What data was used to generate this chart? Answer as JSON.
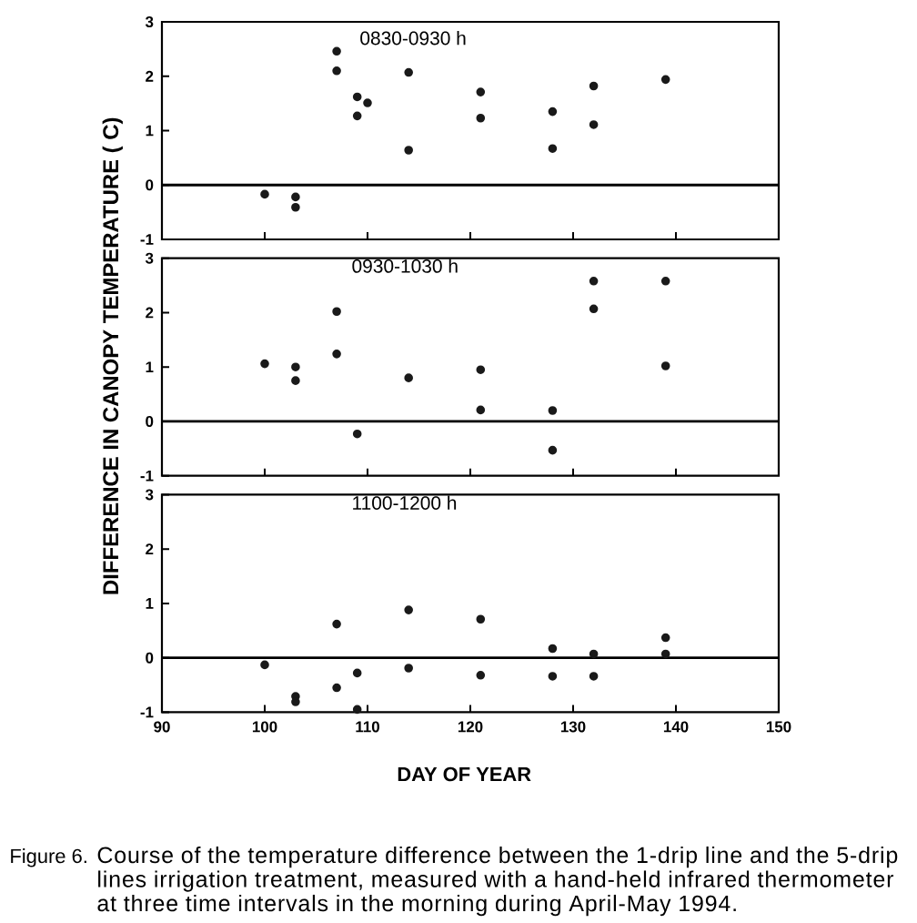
{
  "chart_data": [
    {
      "type": "scatter",
      "title": "0830-0930 h",
      "x": [
        100,
        103,
        103,
        107,
        107,
        109,
        109,
        110,
        114,
        114,
        121,
        121,
        128,
        128,
        132,
        132,
        139
      ],
      "values": [
        -0.17,
        -0.22,
        -0.41,
        2.46,
        2.1,
        1.62,
        1.27,
        1.51,
        2.07,
        0.64,
        1.71,
        1.23,
        1.35,
        0.67,
        1.82,
        1.11,
        1.94
      ],
      "color": "#1a1a1a",
      "marker": "circle",
      "xlim": [
        90,
        150
      ],
      "ylim": [
        -1,
        3
      ],
      "xticks": [
        90,
        100,
        110,
        120,
        130,
        140,
        150
      ],
      "yticks": [
        -1,
        0,
        1,
        2,
        3
      ],
      "tick_labels": "y",
      "ref_lines": [
        {
          "axis": "y",
          "value": 0
        }
      ]
    },
    {
      "type": "scatter",
      "title": "0930-1030 h",
      "ylabel": "DIFFERENCE IN CANOPY TEMPERATURE ( C)",
      "x": [
        100,
        103,
        103,
        107,
        107,
        109,
        114,
        121,
        121,
        128,
        128,
        132,
        132,
        139,
        139
      ],
      "values": [
        1.06,
        1.0,
        0.75,
        2.02,
        1.24,
        -0.23,
        0.8,
        0.95,
        0.21,
        0.2,
        -0.53,
        2.58,
        2.07,
        2.58,
        1.02
      ],
      "color": "#1a1a1a",
      "marker": "circle",
      "xlim": [
        90,
        150
      ],
      "ylim": [
        -1,
        3
      ],
      "xticks": [
        90,
        100,
        110,
        120,
        130,
        140,
        150
      ],
      "yticks": [
        -1,
        0,
        1,
        2,
        3
      ],
      "tick_labels": "y",
      "ref_lines": [
        {
          "axis": "y",
          "value": 0
        }
      ]
    },
    {
      "type": "scatter",
      "title": "1100-1200 h",
      "xlabel": "DAY OF YEAR",
      "x": [
        100,
        103,
        103,
        107,
        107,
        109,
        109,
        114,
        114,
        121,
        121,
        128,
        128,
        132,
        132,
        139,
        139
      ],
      "values": [
        -0.13,
        -0.71,
        -0.81,
        0.62,
        -0.55,
        -0.28,
        -0.95,
        0.88,
        -0.19,
        0.71,
        -0.32,
        0.17,
        -0.34,
        0.07,
        -0.34,
        0.37,
        0.07
      ],
      "color": "#1a1a1a",
      "marker": "circle",
      "xlim": [
        90,
        150
      ],
      "ylim": [
        -1,
        3
      ],
      "xticks": [
        90,
        100,
        110,
        120,
        130,
        140,
        150
      ],
      "yticks": [
        -1,
        0,
        1,
        2,
        3
      ],
      "ref_lines": [
        {
          "axis": "y",
          "value": 0
        }
      ],
      "annotations": [
        "Figure 6.",
        "Course of the temperature difference between the 1-drip line and the 5-drip lines irrigation treatment, measured with a hand-held infrared thermometer at three time intervals in the morning during April-May 1994."
      ]
    }
  ]
}
